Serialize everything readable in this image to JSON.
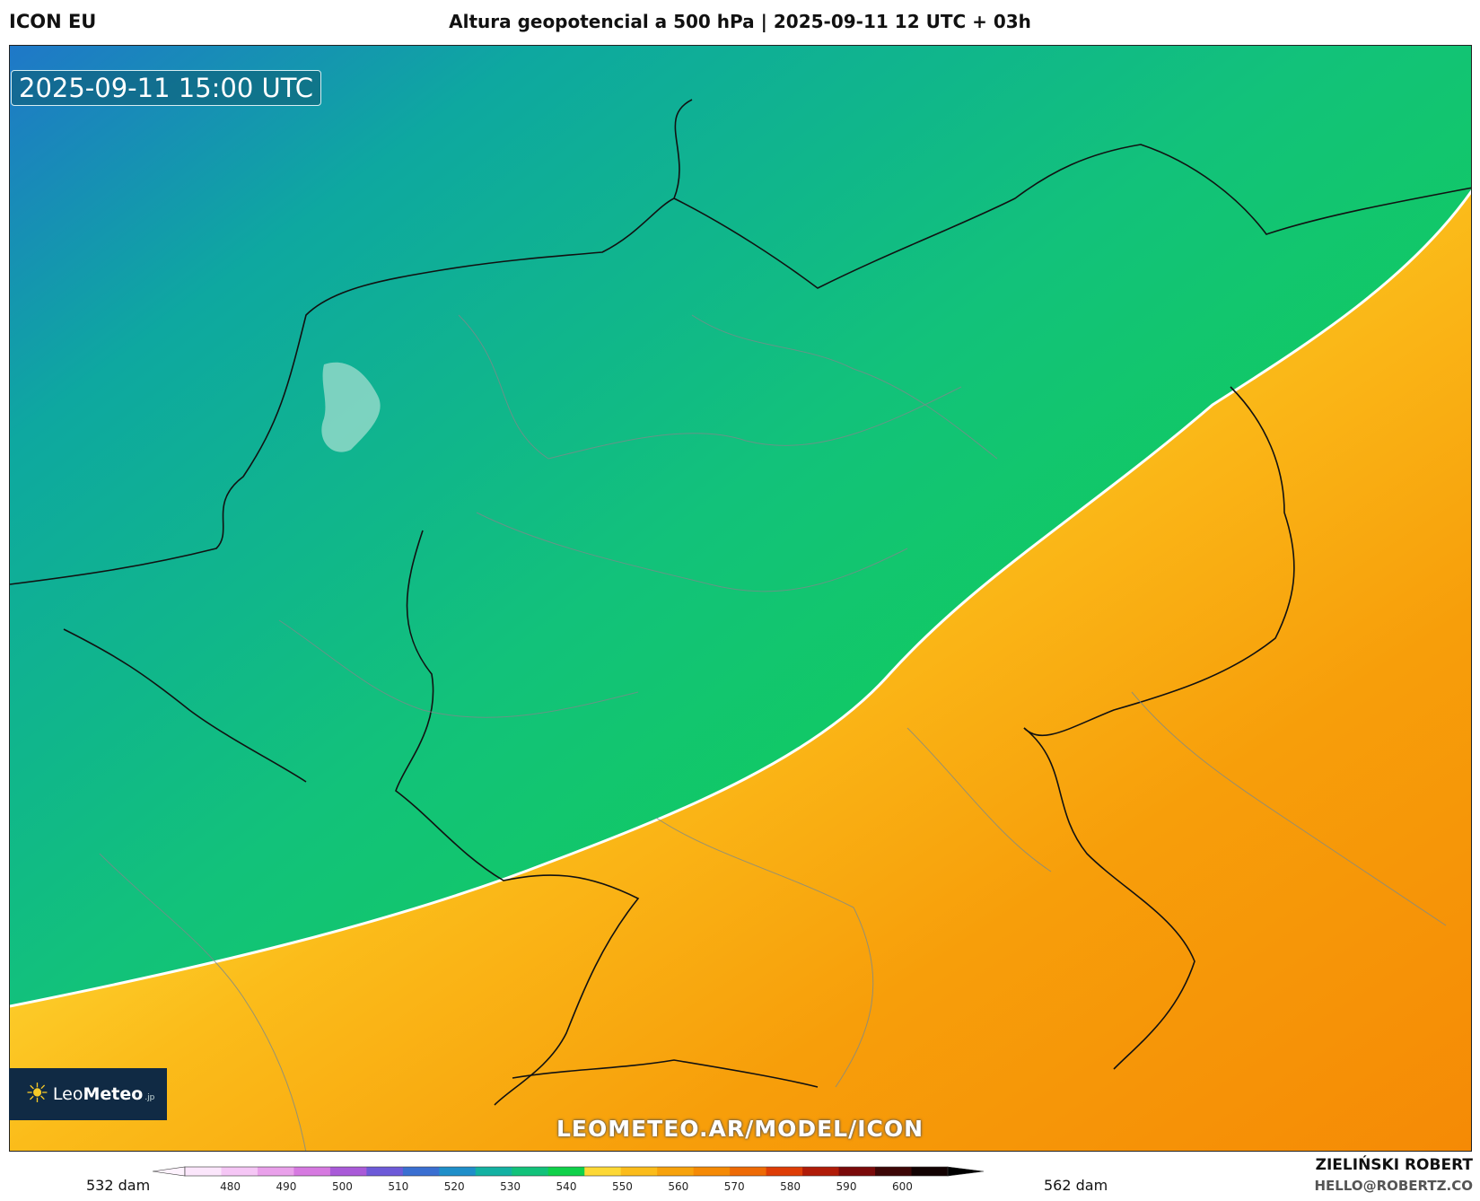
{
  "header": {
    "model": "ICON EU",
    "title": "Altura geopotencial a 500 hPa | 2025-09-11 12 UTC + 03h"
  },
  "map": {
    "valid_time": "2025-09-11 15:00 UTC",
    "watermark": "LEOMETEO.AR/MODEL/ICON",
    "contour_color": "#ffffff",
    "field_colors": [
      "#1f78c8",
      "#0ea8a0",
      "#12c27a",
      "#10d14a",
      "#fdd835",
      "#fbbc1a",
      "#f79e0a",
      "#f58a05"
    ],
    "logo": {
      "brand_light": "Leo",
      "brand_bold": "Meteo",
      "tld": ".jp",
      "icon": "sun-icon"
    }
  },
  "legend": {
    "min_label": "532 dam",
    "max_label": "562 dam",
    "ticks": [
      "480",
      "490",
      "500",
      "510",
      "520",
      "530",
      "540",
      "550",
      "560",
      "570",
      "580",
      "590",
      "600"
    ],
    "colors": [
      "#fbe6fb",
      "#f5c6f5",
      "#e9a0ea",
      "#d679e0",
      "#a95ad8",
      "#6d5ad8",
      "#3a6fd1",
      "#1f8fc9",
      "#13b1a2",
      "#12c27a",
      "#10d14a",
      "#fdd835",
      "#fbbc1a",
      "#f7a20c",
      "#f58a05",
      "#ee6a05",
      "#de3d06",
      "#b01b08",
      "#7a0a0a",
      "#3d0606",
      "#120202"
    ]
  },
  "credits": {
    "author": "ZIELIŃSKI ROBERT",
    "email": "HELLO@ROBERTZ.CO"
  }
}
